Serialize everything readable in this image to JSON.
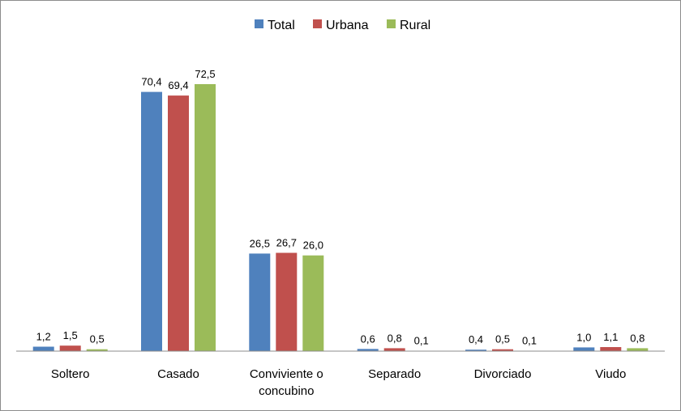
{
  "chart_data": {
    "type": "bar",
    "categories": [
      "Soltero",
      "Casado",
      "Conviviente o concubino",
      "Separado",
      "Divorciado",
      "Viudo"
    ],
    "category_lines": [
      [
        "Soltero"
      ],
      [
        "Casado"
      ],
      [
        "Conviviente o",
        "concubino"
      ],
      [
        "Separado"
      ],
      [
        "Divorciado"
      ],
      [
        "Viudo"
      ]
    ],
    "series": [
      {
        "name": "Total",
        "color": "#4f81bd",
        "values": [
          1.2,
          70.4,
          26.5,
          0.6,
          0.4,
          1.0
        ],
        "labels": [
          "1,2",
          "70,4",
          "26,5",
          "0,6",
          "0,4",
          "1,0"
        ]
      },
      {
        "name": "Urbana",
        "color": "#c0504d",
        "values": [
          1.5,
          69.4,
          26.7,
          0.8,
          0.5,
          1.1
        ],
        "labels": [
          "1,5",
          "69,4",
          "26,7",
          "0,8",
          "0,5",
          "1,1"
        ]
      },
      {
        "name": "Rural",
        "color": "#9bbb59",
        "values": [
          0.5,
          72.5,
          26.0,
          0.1,
          0.1,
          0.8
        ],
        "labels": [
          "0,5",
          "72,5",
          "26,0",
          "0,1",
          "0,1",
          "0,8"
        ]
      }
    ],
    "ylim": [
      0,
      72.5
    ],
    "legend": "top",
    "grid": false
  }
}
